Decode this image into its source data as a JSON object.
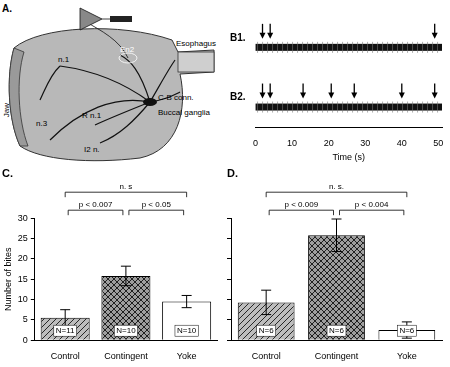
{
  "diagram": {
    "label": "A.",
    "parts": {
      "jaw": "Jaw",
      "esophagus": "Esophagus",
      "n1": "n.1",
      "n3": "n.3",
      "rn1": "R n.1",
      "i2n": "I2 n.",
      "en2": "En2",
      "cb_conn": "C-B conn.",
      "buccal_ganglia": "Buccal ganglia"
    }
  },
  "chart_data": [
    {
      "type": "events",
      "labels": [
        "B1.",
        "B2."
      ],
      "events": [
        [
          1.9,
          4,
          49
        ],
        [
          1.9,
          4,
          13,
          20.7,
          27,
          40,
          49
        ]
      ],
      "xlim": [
        0,
        51
      ],
      "xticks": [
        0,
        10,
        20,
        30,
        40,
        50
      ],
      "x_label": "Time (s)",
      "grid": false
    },
    {
      "type": "bar",
      "title": "C.",
      "categories": [
        "Control",
        "Contingent",
        "Yoke"
      ],
      "values": [
        5.5,
        15.8,
        9.5
      ],
      "errors": [
        2,
        2.4,
        1.5
      ],
      "n_labels": [
        "N=11",
        "N=10",
        "N=10"
      ],
      "colors": [
        "#bdbdbd",
        "#9e9e9e",
        "#ffffff"
      ],
      "ylim": [
        0,
        30
      ],
      "yticks": [
        0,
        5,
        10,
        15,
        20,
        25,
        30
      ],
      "y_label": "Number of bites",
      "comparisons": [
        {
          "from": "Control",
          "to": "Yoke",
          "text": "n. s"
        },
        {
          "from": "Control",
          "to": "Contingent",
          "text": "p < 0.007"
        },
        {
          "from": "Contingent",
          "to": "Yoke",
          "text": "p < 0.05"
        }
      ],
      "grid": false
    },
    {
      "type": "bar",
      "title": "D.",
      "categories": [
        "Control",
        "Contingent",
        "Yoke"
      ],
      "values": [
        9.3,
        25.8,
        2.5
      ],
      "errors": [
        3,
        4,
        2
      ],
      "n_labels": [
        "N=6",
        "N=6",
        "N=6"
      ],
      "colors": [
        "#bdbdbd",
        "#9e9e9e",
        "#ffffff"
      ],
      "ylim": [
        0,
        30
      ],
      "yticks": [
        0,
        5,
        10,
        15,
        20,
        25,
        30
      ],
      "tick_labels": "x",
      "comparisons": [
        {
          "from": "Control",
          "to": "Yoke",
          "text": "n. s."
        },
        {
          "from": "Control",
          "to": "Contingent",
          "text": "p < 0.009"
        },
        {
          "from": "Contingent",
          "to": "Yoke",
          "text": "p < 0.004"
        }
      ],
      "grid": false
    }
  ]
}
